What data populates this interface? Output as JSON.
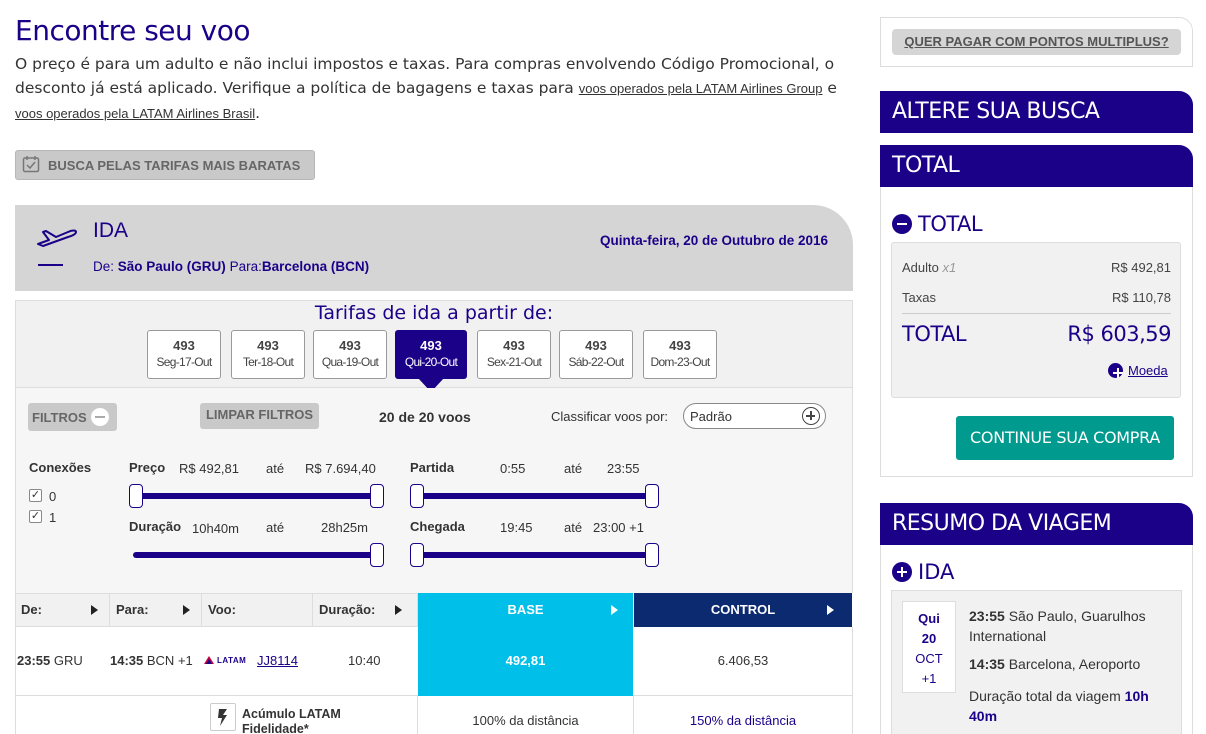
{
  "header": {
    "title": "Encontre seu voo",
    "intro_text": "O preço é para um adulto e não inclui impostos e taxas. Para compras envolvendo Código Promocional, o desconto já está aplicado. Verifique a política de bagagens e taxas para",
    "link_group": "voos operados pela LATAM Airlines Group",
    "conj": "e",
    "link_brasil": "voos operados pela LATAM Airlines Brasil",
    "period": "."
  },
  "cheapest_button": "BUSCA PELAS TARIFAS MAIS BARATAS",
  "ida": {
    "label": "IDA",
    "from_label": "De:",
    "from": "São Paulo (GRU)",
    "to_label": "Para:",
    "to": "Barcelona (BCN)",
    "date": "Quinta-feira, 20 de Outubro de 2016"
  },
  "tarifas": {
    "title": "Tarifas de ida a partir de:",
    "days": [
      {
        "price": "493",
        "day": "Seg-17-Out"
      },
      {
        "price": "493",
        "day": "Ter-18-Out"
      },
      {
        "price": "493",
        "day": "Qua-19-Out"
      },
      {
        "price": "493",
        "day": "Qui-20-Out"
      },
      {
        "price": "493",
        "day": "Sex-21-Out"
      },
      {
        "price": "493",
        "day": "Sáb-22-Out"
      },
      {
        "price": "493",
        "day": "Dom-23-Out"
      }
    ],
    "selected_index": 3
  },
  "filters": {
    "filtros_label": "FILTROS",
    "limpar_label": "LIMPAR FILTROS",
    "count": "20 de 20 voos",
    "sort_label": "Classificar voos por:",
    "sort_value": "Padrão",
    "conexoes_label": "Conexões",
    "conexoes": [
      "0",
      "1"
    ],
    "ate": "até",
    "preco_label": "Preço",
    "preco_min": "R$ 492,81",
    "preco_max": "R$ 7.694,40",
    "partida_label": "Partida",
    "partida_min": "0:55",
    "partida_max": "23:55",
    "duracao_label": "Duração",
    "duracao_min": "10h40m",
    "duracao_max": "28h25m",
    "chegada_label": "Chegada",
    "chegada_min": "19:45",
    "chegada_max": "23:00 +1"
  },
  "table": {
    "headers": {
      "de": "De:",
      "para": "Para:",
      "voo": "Voo:",
      "duracao": "Duração:",
      "base": "BASE",
      "control": "CONTROL"
    },
    "row": {
      "dep_time": "23:55",
      "dep_airport": "GRU",
      "arr_time": "14:35",
      "arr_airport": "BCN",
      "arr_offset": "+1",
      "airline": "LATAM",
      "flight": "JJ8114",
      "duration": "10:40",
      "base_price": "492,81",
      "control_price": "6.406,53"
    },
    "acumulo_label": "Acúmulo LATAM Fidelidade*",
    "base_acumulo": "100% da distância",
    "control_acumulo": "150% da distância"
  },
  "sidebar": {
    "multiplus": "QUER PAGAR COM PONTOS MULTIPLUS?",
    "altere": "ALTERE SUA BUSCA",
    "total_head": "TOTAL",
    "total_toggle": "TOTAL",
    "adulto_label": "Adulto",
    "adulto_qty": "x1",
    "adulto_value": "R$ 492,81",
    "taxas_label": "Taxas",
    "taxas_value": "R$ 110,78",
    "total_label": "TOTAL",
    "total_value": "R$ 603,59",
    "moeda": "Moeda",
    "continue": "CONTINUE SUA COMPRA",
    "resumo": "RESUMO DA VIAGEM",
    "ida_label": "IDA",
    "trip": {
      "weekday": "Qui",
      "day": "20",
      "month": "OCT",
      "offset": "+1",
      "dep_time": "23:55",
      "dep_place": "São Paulo, Guarulhos International",
      "arr_time": "14:35",
      "arr_place": "Barcelona, Aeroporto",
      "duration_label": "Duração total da viagem",
      "duration_value": "10h 40m"
    }
  },
  "colors": {
    "brand": "#1b0088",
    "base": "#00bfe8",
    "control": "#0b2a70",
    "continue": "#009a8e"
  }
}
